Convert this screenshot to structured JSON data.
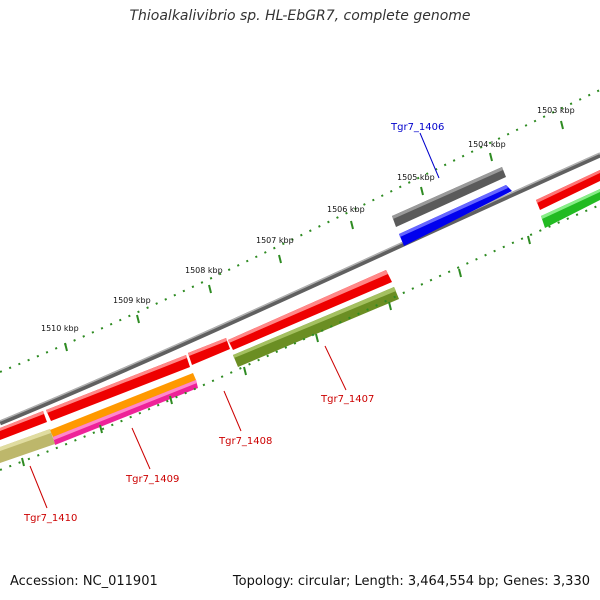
{
  "title": "Thioalkalivibrio sp. HL-EbGR7, complete genome",
  "footer": {
    "accession": "Accession: NC_011901",
    "summary": "Topology: circular; Length: 3,464,554 bp; Genes: 3,330"
  },
  "scale_labels": [
    "1503 kbp",
    "1504 kbp",
    "1505 kbp",
    "1506 kbp",
    "1507 kbp",
    "1508 kbp",
    "1509 kbp",
    "1510 kbp"
  ],
  "gene_labels": [
    {
      "text": "Tgr7_1406",
      "color": "#0000cc"
    },
    {
      "text": "Tgr7_1407",
      "color": "#cc0000"
    },
    {
      "text": "Tgr7_1408",
      "color": "#cc0000"
    },
    {
      "text": "Tgr7_1409",
      "color": "#cc0000"
    },
    {
      "text": "Tgr7_1410",
      "color": "#cc0000"
    }
  ],
  "colors": {
    "backbone": "#808080",
    "scale_ticks": "#2e8b22",
    "red_gene": "#ee0000",
    "gray_gene": "#606060",
    "blue_gene": "#0000ee",
    "olive_gene": "#6b8e23",
    "green_gene": "#22bb22",
    "orange_gene": "#ff9900",
    "magenta_gene": "#ee2299",
    "khaki_gene": "#bdb76b"
  }
}
